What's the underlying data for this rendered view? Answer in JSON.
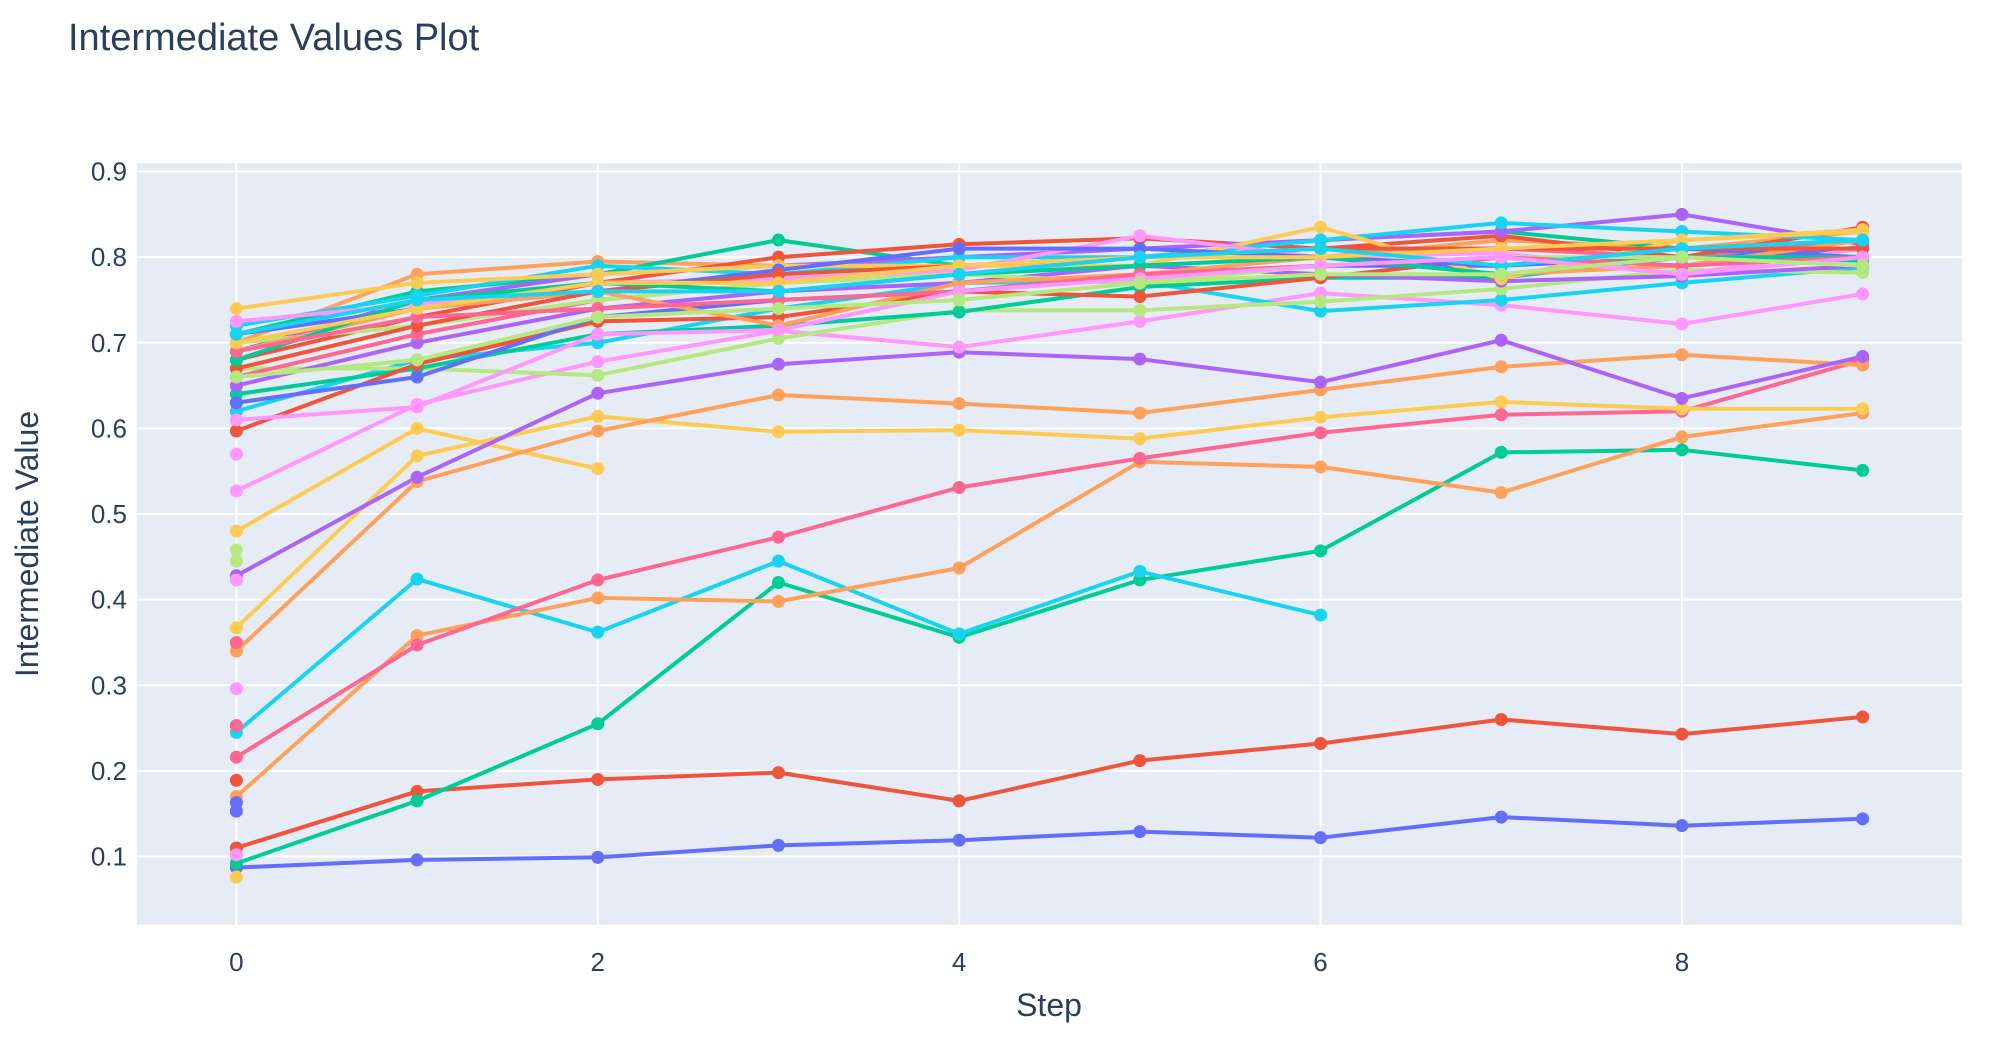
{
  "chart_data": {
    "type": "line",
    "title": "Intermediate Values Plot",
    "xlabel": "Step",
    "ylabel": "Intermediate Value",
    "xlim": [
      -0.55,
      9.55
    ],
    "ylim": [
      0.02,
      0.91
    ],
    "x_ticks": [
      0,
      2,
      4,
      6,
      8
    ],
    "x_tick_labels": [
      "0",
      "2",
      "4",
      "6",
      "8"
    ],
    "y_ticks": [
      0.1,
      0.2,
      0.3,
      0.4,
      0.5,
      0.6,
      0.7,
      0.8,
      0.9
    ],
    "y_tick_labels": [
      "0.1",
      "0.2",
      "0.3",
      "0.4",
      "0.5",
      "0.6",
      "0.7",
      "0.8",
      "0.9"
    ],
    "grid": true,
    "legend": "none",
    "colors": {
      "plot_bg": "#e5ecf6",
      "grid": "#ffffff",
      "text": "#2a3f5f",
      "palette": [
        "#636efa",
        "#EF553B",
        "#00cc96",
        "#ab63fa",
        "#FFA15A",
        "#19d3f3",
        "#FF6692",
        "#B6E880",
        "#FF97FF",
        "#FECB52"
      ]
    },
    "series": [
      {
        "color": "#636efa",
        "x": [
          0,
          1,
          2,
          3,
          4,
          5,
          6,
          7,
          8,
          9
        ],
        "y": [
          0.087,
          0.096,
          0.099,
          0.113,
          0.119,
          0.129,
          0.122,
          0.146,
          0.136,
          0.144
        ]
      },
      {
        "color": "#EF553B",
        "x": [
          0,
          1,
          2,
          3,
          4,
          5,
          6,
          7,
          8,
          9
        ],
        "y": [
          0.11,
          0.176,
          0.19,
          0.198,
          0.165,
          0.212,
          0.232,
          0.26,
          0.243,
          0.263
        ]
      },
      {
        "color": "#00cc96",
        "x": [
          0,
          1,
          2,
          3,
          4,
          5,
          6,
          7,
          8,
          9
        ],
        "y": [
          0.092,
          0.165,
          0.255,
          0.42,
          0.356,
          0.423,
          0.457,
          0.572,
          0.575,
          0.551
        ]
      },
      {
        "color": "#19d3f3",
        "x": [
          0,
          1,
          2,
          3,
          4,
          5,
          6
        ],
        "y": [
          0.245,
          0.424,
          0.362,
          0.445,
          0.36,
          0.433,
          0.382
        ]
      },
      {
        "color": "#FFA15A",
        "x": [
          0,
          1,
          2,
          3,
          4,
          5,
          6,
          7,
          8,
          9
        ],
        "y": [
          0.17,
          0.358,
          0.402,
          0.398,
          0.437,
          0.561,
          0.555,
          0.525,
          0.59,
          0.618
        ]
      },
      {
        "color": "#FF6692",
        "x": [
          0,
          1,
          2,
          3,
          4,
          5,
          6,
          7,
          8,
          9
        ],
        "y": [
          0.216,
          0.347,
          0.423,
          0.473,
          0.531,
          0.565,
          0.595,
          0.616,
          0.62,
          0.68
        ]
      },
      {
        "color": "#FECB52",
        "x": [
          0,
          1,
          2,
          3,
          4,
          5,
          6,
          7,
          8,
          9
        ],
        "y": [
          0.367,
          0.568,
          0.614,
          0.596,
          0.598,
          0.588,
          0.613,
          0.631,
          0.623,
          0.623
        ]
      },
      {
        "color": "#FECB52",
        "x": [
          0,
          1,
          2
        ],
        "y": [
          0.48,
          0.6,
          0.553
        ]
      },
      {
        "color": "#FFA15A",
        "x": [
          0,
          1,
          2,
          3,
          4,
          5,
          6,
          7,
          8,
          9
        ],
        "y": [
          0.34,
          0.538,
          0.597,
          0.639,
          0.629,
          0.618,
          0.645,
          0.672,
          0.686,
          0.674
        ]
      },
      {
        "color": "#ab63fa",
        "x": [
          0,
          1,
          2,
          3,
          4,
          5,
          6,
          7,
          8,
          9
        ],
        "y": [
          0.428,
          0.543,
          0.641,
          0.675,
          0.689,
          0.681,
          0.654,
          0.703,
          0.635,
          0.684
        ]
      },
      {
        "color": "#FF97FF",
        "x": [
          0,
          1,
          2,
          3,
          4,
          5,
          6,
          7,
          8,
          9
        ],
        "y": [
          0.527,
          0.628,
          0.678,
          0.714,
          0.695,
          0.725,
          0.758,
          0.744,
          0.722,
          0.757
        ]
      },
      {
        "color": "#19d3f3",
        "x": [
          0,
          1,
          2,
          3,
          4,
          5,
          6,
          7,
          8,
          9
        ],
        "y": [
          0.62,
          0.68,
          0.7,
          0.74,
          0.77,
          0.772,
          0.737,
          0.75,
          0.77,
          0.788
        ]
      },
      {
        "color": "#B6E880",
        "x": [
          0,
          1,
          2,
          3,
          4,
          5,
          6,
          7,
          8,
          9
        ],
        "y": [
          0.67,
          0.67,
          0.662,
          0.705,
          0.738,
          0.738,
          0.748,
          0.763,
          0.785,
          0.782
        ]
      },
      {
        "color": "#00cc96",
        "x": [
          0,
          1,
          2,
          3,
          4,
          5,
          6,
          7,
          8,
          9
        ],
        "y": [
          0.64,
          0.67,
          0.71,
          0.72,
          0.736,
          0.765,
          0.776,
          0.776,
          0.8,
          0.796
        ]
      },
      {
        "color": "#EF553B",
        "x": [
          0,
          1,
          2,
          3,
          4,
          5,
          6,
          7,
          8,
          9
        ],
        "y": [
          0.597,
          0.675,
          0.725,
          0.73,
          0.76,
          0.754,
          0.776,
          0.8,
          0.79,
          0.812
        ]
      },
      {
        "color": "#636efa",
        "x": [
          0,
          1,
          2,
          3,
          4,
          5,
          6,
          7,
          8,
          9
        ],
        "y": [
          0.63,
          0.66,
          0.73,
          0.75,
          0.76,
          0.78,
          0.79,
          0.79,
          0.8,
          0.81
        ]
      },
      {
        "color": "#ab63fa",
        "x": [
          0,
          1,
          2,
          3,
          4,
          5,
          6,
          7,
          8,
          9
        ],
        "y": [
          0.65,
          0.7,
          0.74,
          0.76,
          0.77,
          0.79,
          0.78,
          0.772,
          0.778,
          0.79
        ]
      },
      {
        "color": "#FF6692",
        "x": [
          0,
          1,
          2,
          3,
          4,
          5,
          6,
          7,
          8,
          9
        ],
        "y": [
          0.66,
          0.71,
          0.75,
          0.77,
          0.78,
          0.8,
          0.81,
          0.81,
          0.8,
          0.82
        ]
      },
      {
        "color": "#FFA15A",
        "x": [
          0,
          1,
          2,
          3,
          4,
          5,
          6,
          7,
          8,
          9
        ],
        "y": [
          0.7,
          0.78,
          0.795,
          0.79,
          0.8,
          0.81,
          0.8,
          0.82,
          0.81,
          0.83
        ]
      },
      {
        "color": "#00cc96",
        "x": [
          0,
          1,
          2,
          3,
          4,
          5,
          6,
          7,
          8,
          9
        ],
        "y": [
          0.71,
          0.76,
          0.78,
          0.82,
          0.79,
          0.8,
          0.82,
          0.83,
          0.81,
          0.82
        ]
      },
      {
        "color": "#EF553B",
        "x": [
          0,
          1,
          2,
          3,
          4,
          5,
          6,
          7,
          8,
          9
        ],
        "y": [
          0.68,
          0.73,
          0.77,
          0.8,
          0.815,
          0.822,
          0.81,
          0.825,
          0.8,
          0.835
        ]
      },
      {
        "color": "#ab63fa",
        "x": [
          0,
          1,
          2,
          3,
          4,
          5,
          6,
          7,
          8,
          9
        ],
        "y": [
          0.69,
          0.75,
          0.78,
          0.79,
          0.8,
          0.81,
          0.82,
          0.83,
          0.85,
          0.815
        ]
      },
      {
        "color": "#19d3f3",
        "x": [
          0,
          1,
          2,
          3,
          4,
          5,
          6,
          7,
          8,
          9
        ],
        "y": [
          0.72,
          0.755,
          0.79,
          0.78,
          0.8,
          0.8,
          0.82,
          0.84,
          0.83,
          0.82
        ]
      },
      {
        "color": "#FECB52",
        "x": [
          0,
          1,
          2,
          3,
          4,
          5,
          6,
          7,
          8,
          9
        ],
        "y": [
          0.74,
          0.77,
          0.78,
          0.79,
          0.79,
          0.79,
          0.835,
          0.775,
          0.82,
          0.832
        ]
      },
      {
        "color": "#FF97FF",
        "x": [
          0,
          1,
          2,
          3,
          4,
          5,
          6,
          7,
          8,
          9
        ],
        "y": [
          0.725,
          0.745,
          0.77,
          0.775,
          0.785,
          0.825,
          0.8,
          0.805,
          0.78,
          0.81
        ]
      },
      {
        "color": "#B6E880",
        "x": [
          0,
          1,
          2,
          3,
          4,
          5,
          6,
          7,
          8,
          9
        ],
        "y": [
          0.7,
          0.72,
          0.75,
          0.77,
          0.78,
          0.77,
          0.79,
          0.8,
          0.8,
          0.8
        ]
      },
      {
        "color": "#636efa",
        "x": [
          0,
          1,
          2,
          3,
          4,
          5,
          6,
          7,
          8,
          9
        ],
        "y": [
          0.71,
          0.74,
          0.76,
          0.785,
          0.81,
          0.81,
          0.8,
          0.79,
          0.81,
          0.8
        ]
      },
      {
        "color": "#FFA15A",
        "x": [
          0,
          1,
          2,
          3,
          4,
          5,
          6,
          7,
          8,
          9
        ],
        "y": [
          0.69,
          0.74,
          0.76,
          0.72,
          0.77,
          0.78,
          0.8,
          0.78,
          0.79,
          0.82
        ]
      },
      {
        "color": "#EF553B",
        "x": [
          0,
          1,
          2,
          3,
          4,
          5,
          6,
          7,
          8,
          9
        ],
        "y": [
          0.67,
          0.72,
          0.76,
          0.78,
          0.79,
          0.8,
          0.81,
          0.81,
          0.81,
          0.81
        ]
      },
      {
        "color": "#00cc96",
        "x": [
          0,
          1,
          2,
          3,
          4,
          5,
          6,
          7,
          8,
          9
        ],
        "y": [
          0.68,
          0.75,
          0.77,
          0.76,
          0.78,
          0.79,
          0.8,
          0.78,
          0.8,
          0.8
        ]
      },
      {
        "color": "#FF6692",
        "x": [
          0,
          1,
          2,
          3,
          4,
          5,
          6,
          7,
          8,
          9
        ],
        "y": [
          0.69,
          0.73,
          0.74,
          0.75,
          0.76,
          0.78,
          0.79,
          0.8,
          0.79,
          0.8
        ]
      },
      {
        "color": "#FECB52",
        "x": [
          0,
          1,
          2,
          3,
          4,
          5,
          6,
          7,
          8,
          9
        ],
        "y": [
          0.7,
          0.74,
          0.77,
          0.77,
          0.79,
          0.8,
          0.8,
          0.81,
          0.82,
          0.83
        ]
      },
      {
        "color": "#19d3f3",
        "x": [
          0,
          1,
          2,
          3,
          4,
          5,
          6,
          7,
          8,
          9
        ],
        "y": [
          0.71,
          0.75,
          0.76,
          0.76,
          0.78,
          0.8,
          0.81,
          0.79,
          0.81,
          0.82
        ]
      },
      {
        "color": "#FF97FF",
        "x": [
          0,
          1,
          2,
          3,
          4,
          5,
          6,
          7,
          8,
          9
        ],
        "y": [
          0.61,
          0.625,
          0.71,
          0.715,
          0.76,
          0.775,
          0.79,
          0.8,
          0.78,
          0.8
        ]
      },
      {
        "color": "#B6E880",
        "x": [
          0,
          1,
          2,
          3,
          4,
          5,
          6,
          7,
          8,
          9
        ],
        "y": [
          0.66,
          0.68,
          0.73,
          0.74,
          0.75,
          0.77,
          0.78,
          0.78,
          0.8,
          0.79
        ]
      }
    ],
    "start_only_points": {
      "x": [
        0,
        0,
        0,
        0,
        0,
        0,
        0,
        0,
        0,
        0,
        0,
        0
      ],
      "y": [
        0.076,
        0.102,
        0.153,
        0.163,
        0.189,
        0.253,
        0.296,
        0.35,
        0.423,
        0.445,
        0.458,
        0.57
      ],
      "colors": [
        "#FECB52",
        "#FF97FF",
        "#636efa",
        "#636efa",
        "#EF553B",
        "#FF6692",
        "#FF97FF",
        "#FF6692",
        "#FF97FF",
        "#B6E880",
        "#B6E880",
        "#FF97FF"
      ]
    }
  }
}
